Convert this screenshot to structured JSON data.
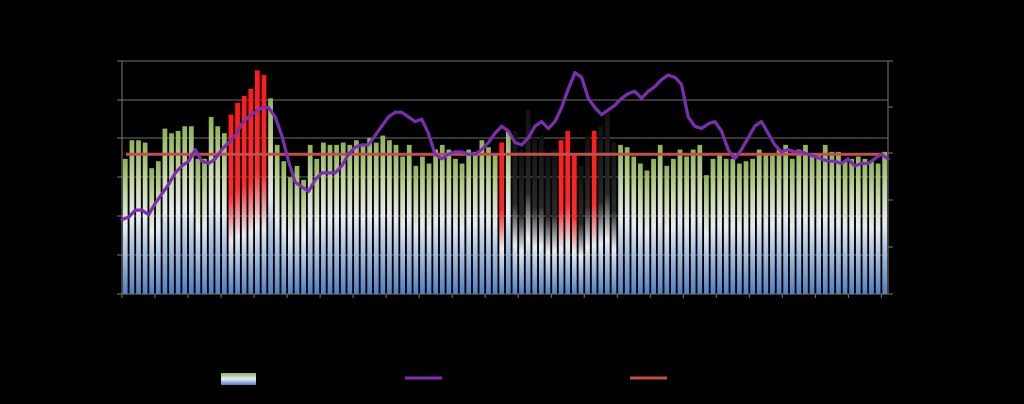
{
  "chart_data": {
    "type": "bar",
    "bar_count": 116,
    "bar_values": [
      58,
      66,
      66,
      65,
      54,
      57,
      71,
      69,
      70,
      72,
      72,
      58,
      58,
      76,
      72,
      69,
      77,
      82,
      85,
      88,
      96,
      94,
      84,
      64,
      57,
      50,
      55,
      49,
      64,
      58,
      65,
      64,
      64,
      65,
      64,
      66,
      64,
      67,
      65,
      68,
      66,
      64,
      59,
      64,
      55,
      59,
      56,
      62,
      64,
      62,
      58,
      56,
      62,
      61,
      66,
      63,
      60,
      65,
      70,
      70,
      62,
      79,
      67,
      68,
      60,
      62,
      66,
      70,
      60,
      55,
      68,
      70,
      72,
      78,
      65,
      64,
      63,
      59,
      56,
      53,
      58,
      64,
      55,
      58,
      62,
      59,
      62,
      64,
      51,
      58,
      60,
      58,
      58,
      56,
      57,
      58,
      62,
      60,
      60,
      62,
      64,
      58,
      62,
      64,
      60,
      60,
      64,
      61,
      61,
      57,
      58,
      59,
      58,
      57,
      56,
      61
    ],
    "line_values": [
      32,
      33,
      36,
      36,
      34,
      39,
      43,
      47,
      52,
      55,
      57,
      62,
      57,
      56,
      58,
      62,
      65,
      68,
      73,
      76,
      78,
      80,
      80,
      76,
      68,
      57,
      48,
      46,
      44,
      49,
      52,
      52,
      52,
      55,
      60,
      63,
      64,
      64,
      68,
      72,
      76,
      78,
      78,
      76,
      74,
      75,
      69,
      60,
      58,
      60,
      61,
      61,
      60,
      60,
      62,
      65,
      69,
      72,
      70,
      65,
      64,
      67,
      72,
      74,
      71,
      74,
      80,
      88,
      95,
      93,
      84,
      80,
      77,
      79,
      81,
      84,
      86,
      87,
      84,
      87,
      89,
      92,
      94,
      93,
      90,
      76,
      72,
      71,
      73,
      74,
      70,
      62,
      58,
      62,
      67,
      72,
      74,
      69,
      64,
      61,
      62,
      61,
      61,
      60,
      59,
      58,
      57,
      57,
      56,
      58,
      55,
      56,
      56,
      58,
      60,
      58
    ],
    "reference_line": 60,
    "ylim": [
      0,
      100
    ],
    "highlighted_bars": {
      "red": [
        16,
        17,
        18,
        19,
        20,
        21,
        57,
        66,
        67,
        68,
        71
      ],
      "black": [
        59,
        60,
        61,
        62,
        63,
        64,
        65,
        69,
        70,
        72,
        73,
        74
      ]
    },
    "legend": [
      {
        "kind": "bar-swatch",
        "label": ""
      },
      {
        "kind": "line-swatch",
        "label": ""
      },
      {
        "kind": "reference-swatch",
        "label": ""
      }
    ],
    "colors": {
      "background": "#000000",
      "axis": "#7a7a7a",
      "gridline": "#6e6e6e",
      "bar_top_green": "#8fb25a",
      "bar_mid_white": "#e7ecf3",
      "bar_bottom_blue": "#4f7fc2",
      "bar_red": "#ff1a1a",
      "bar_dark": "#1e1e1e",
      "line_purple": "#7b2fb0",
      "reference_red": "#c0504d"
    }
  }
}
